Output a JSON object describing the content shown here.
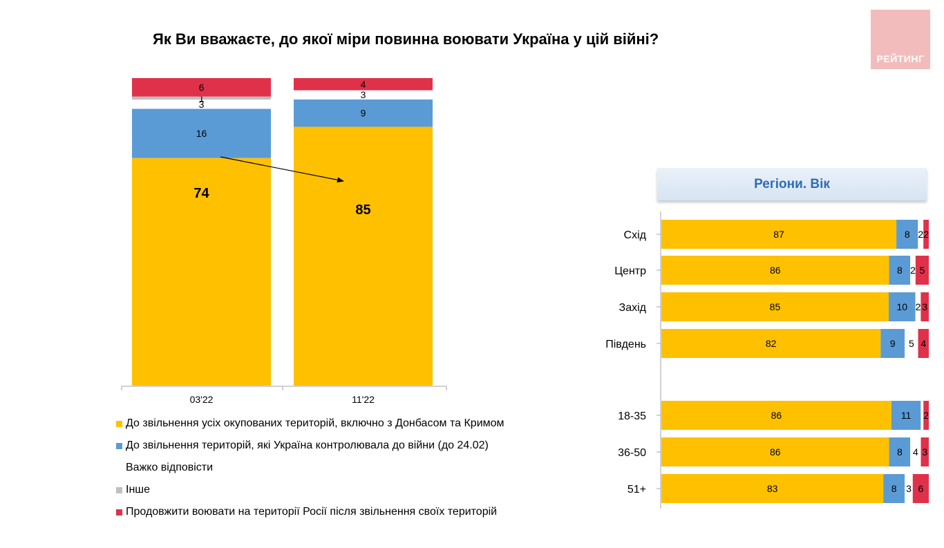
{
  "title": "Як Ви вважаєте, до якої міри повинна воювати Україна у цій війні?",
  "logo_text": "РЕЙТИНГ",
  "panel_header": "Регіони. Вік",
  "colors": {
    "full_liberation": "#ffc000",
    "pre_war_borders": "#5b9bd5",
    "hard_to_say": "#ffffff",
    "other": "#bfbfbf",
    "continue_into_russia": "#e0314b"
  },
  "legend": [
    {
      "label": "До звільнення усіх окупованих територій, включно з Донбасом та Кримом",
      "color": "#ffc000",
      "swatch": true
    },
    {
      "label": "До звільнення територій, які Україна контролювала до війни (до 24.02)",
      "color": "#5b9bd5",
      "swatch": true
    },
    {
      "label": "Важко відповісти",
      "color": "#ffffff",
      "swatch": false
    },
    {
      "label": "Інше",
      "color": "#bfbfbf",
      "swatch": true
    },
    {
      "label": "Продовжити воювати на території Росії після звільнення своїх територій",
      "color": "#e0314b",
      "swatch": true
    }
  ],
  "chart_data": [
    {
      "type": "bar",
      "stacked": true,
      "orientation": "vertical",
      "categories": [
        "03'22",
        "11'22"
      ],
      "series": [
        {
          "name": "До звільнення усіх окупованих територій, включно з Донбасом та Кримом",
          "color": "#ffc000",
          "values": [
            74,
            85
          ]
        },
        {
          "name": "До звільнення територій, які Україна контролювала до війни (до 24.02)",
          "color": "#5b9bd5",
          "values": [
            16,
            9
          ]
        },
        {
          "name": "Важко відповісти",
          "color": "#ffffff",
          "values": [
            3,
            3
          ]
        },
        {
          "name": "Інше",
          "color": "#bfbfbf",
          "values": [
            1,
            null
          ]
        },
        {
          "name": "Продовжити воювати на території Росії після звільнення своїх територій",
          "color": "#e0314b",
          "values": [
            6,
            4
          ]
        }
      ],
      "labels": [
        [
          "74",
          "16",
          "3",
          "1",
          "6"
        ],
        [
          "85",
          "9",
          "3",
          "",
          "4"
        ]
      ],
      "annotation": "arrow from 74 to 85"
    },
    {
      "type": "bar",
      "stacked": true,
      "orientation": "horizontal",
      "title": "Регіони. Вік",
      "categories": [
        "Схід",
        "Центр",
        "Захід",
        "Південь",
        "18-35",
        "36-50",
        "51+"
      ],
      "series": [
        {
          "name": "До звільнення усіх окупованих територій, включно з Донбасом та Кримом",
          "color": "#ffc000",
          "values": [
            87,
            86,
            85,
            82,
            86,
            86,
            83
          ]
        },
        {
          "name": "До звільнення територій, які Україна контролювала до війни (до 24.02)",
          "color": "#5b9bd5",
          "values": [
            8,
            8,
            10,
            9,
            11,
            8,
            8
          ]
        },
        {
          "name": "Важко відповісти",
          "color": "#ffffff",
          "values": [
            2,
            2,
            2,
            5,
            1,
            4,
            3
          ]
        },
        {
          "name": "Продовжити воювати на території Росії після звільнення своїх територій",
          "color": "#e0314b",
          "values": [
            2,
            5,
            3,
            4,
            2,
            3,
            6
          ]
        }
      ],
      "labels": [
        [
          "87",
          "8",
          "2",
          "2"
        ],
        [
          "86",
          "8",
          "2",
          "5"
        ],
        [
          "85",
          "10",
          "2",
          "3"
        ],
        [
          "82",
          "9",
          "5",
          "4"
        ],
        [
          "86",
          "11",
          "",
          "2"
        ],
        [
          "86",
          "8",
          "4",
          "3"
        ],
        [
          "83",
          "8",
          "3",
          "6"
        ]
      ]
    }
  ]
}
